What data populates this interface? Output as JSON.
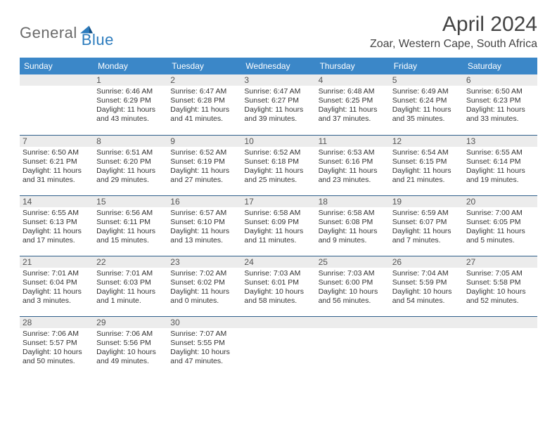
{
  "brand": {
    "general": "General",
    "blue": "Blue"
  },
  "title": "April 2024",
  "location": "Zoar, Western Cape, South Africa",
  "colors": {
    "header_bg": "#3b87c8",
    "header_text": "#ffffff",
    "daynum_bg": "#ececec",
    "rule": "#2f5f8a",
    "logo_gray": "#6a6a6a",
    "logo_blue": "#2b7bbd",
    "text": "#333333",
    "background": "#ffffff"
  },
  "weekdays": [
    "Sunday",
    "Monday",
    "Tuesday",
    "Wednesday",
    "Thursday",
    "Friday",
    "Saturday"
  ],
  "weeks": [
    [
      null,
      {
        "n": "1",
        "sr": "6:46 AM",
        "ss": "6:29 PM",
        "dl": "11 hours and 43 minutes."
      },
      {
        "n": "2",
        "sr": "6:47 AM",
        "ss": "6:28 PM",
        "dl": "11 hours and 41 minutes."
      },
      {
        "n": "3",
        "sr": "6:47 AM",
        "ss": "6:27 PM",
        "dl": "11 hours and 39 minutes."
      },
      {
        "n": "4",
        "sr": "6:48 AM",
        "ss": "6:25 PM",
        "dl": "11 hours and 37 minutes."
      },
      {
        "n": "5",
        "sr": "6:49 AM",
        "ss": "6:24 PM",
        "dl": "11 hours and 35 minutes."
      },
      {
        "n": "6",
        "sr": "6:50 AM",
        "ss": "6:23 PM",
        "dl": "11 hours and 33 minutes."
      }
    ],
    [
      {
        "n": "7",
        "sr": "6:50 AM",
        "ss": "6:21 PM",
        "dl": "11 hours and 31 minutes."
      },
      {
        "n": "8",
        "sr": "6:51 AM",
        "ss": "6:20 PM",
        "dl": "11 hours and 29 minutes."
      },
      {
        "n": "9",
        "sr": "6:52 AM",
        "ss": "6:19 PM",
        "dl": "11 hours and 27 minutes."
      },
      {
        "n": "10",
        "sr": "6:52 AM",
        "ss": "6:18 PM",
        "dl": "11 hours and 25 minutes."
      },
      {
        "n": "11",
        "sr": "6:53 AM",
        "ss": "6:16 PM",
        "dl": "11 hours and 23 minutes."
      },
      {
        "n": "12",
        "sr": "6:54 AM",
        "ss": "6:15 PM",
        "dl": "11 hours and 21 minutes."
      },
      {
        "n": "13",
        "sr": "6:55 AM",
        "ss": "6:14 PM",
        "dl": "11 hours and 19 minutes."
      }
    ],
    [
      {
        "n": "14",
        "sr": "6:55 AM",
        "ss": "6:13 PM",
        "dl": "11 hours and 17 minutes."
      },
      {
        "n": "15",
        "sr": "6:56 AM",
        "ss": "6:11 PM",
        "dl": "11 hours and 15 minutes."
      },
      {
        "n": "16",
        "sr": "6:57 AM",
        "ss": "6:10 PM",
        "dl": "11 hours and 13 minutes."
      },
      {
        "n": "17",
        "sr": "6:58 AM",
        "ss": "6:09 PM",
        "dl": "11 hours and 11 minutes."
      },
      {
        "n": "18",
        "sr": "6:58 AM",
        "ss": "6:08 PM",
        "dl": "11 hours and 9 minutes."
      },
      {
        "n": "19",
        "sr": "6:59 AM",
        "ss": "6:07 PM",
        "dl": "11 hours and 7 minutes."
      },
      {
        "n": "20",
        "sr": "7:00 AM",
        "ss": "6:05 PM",
        "dl": "11 hours and 5 minutes."
      }
    ],
    [
      {
        "n": "21",
        "sr": "7:01 AM",
        "ss": "6:04 PM",
        "dl": "11 hours and 3 minutes."
      },
      {
        "n": "22",
        "sr": "7:01 AM",
        "ss": "6:03 PM",
        "dl": "11 hours and 1 minute."
      },
      {
        "n": "23",
        "sr": "7:02 AM",
        "ss": "6:02 PM",
        "dl": "11 hours and 0 minutes."
      },
      {
        "n": "24",
        "sr": "7:03 AM",
        "ss": "6:01 PM",
        "dl": "10 hours and 58 minutes."
      },
      {
        "n": "25",
        "sr": "7:03 AM",
        "ss": "6:00 PM",
        "dl": "10 hours and 56 minutes."
      },
      {
        "n": "26",
        "sr": "7:04 AM",
        "ss": "5:59 PM",
        "dl": "10 hours and 54 minutes."
      },
      {
        "n": "27",
        "sr": "7:05 AM",
        "ss": "5:58 PM",
        "dl": "10 hours and 52 minutes."
      }
    ],
    [
      {
        "n": "28",
        "sr": "7:06 AM",
        "ss": "5:57 PM",
        "dl": "10 hours and 50 minutes."
      },
      {
        "n": "29",
        "sr": "7:06 AM",
        "ss": "5:56 PM",
        "dl": "10 hours and 49 minutes."
      },
      {
        "n": "30",
        "sr": "7:07 AM",
        "ss": "5:55 PM",
        "dl": "10 hours and 47 minutes."
      },
      null,
      null,
      null,
      null
    ]
  ],
  "labels": {
    "sunrise": "Sunrise:",
    "sunset": "Sunset:",
    "daylight": "Daylight:"
  }
}
